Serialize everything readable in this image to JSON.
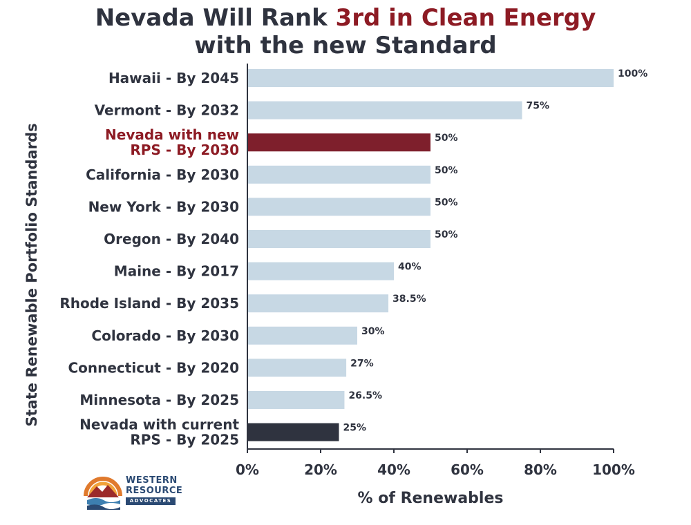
{
  "title": {
    "line1_prefix": "Nevada Will Rank ",
    "line1_accent": "3rd in Clean Energy",
    "line2": "with the new Standard"
  },
  "logo": {
    "line1": "WESTERN",
    "line2": "RESOURCE",
    "line3": "ADVOCATES"
  },
  "chart_data": {
    "type": "bar",
    "orientation": "horizontal",
    "xlabel": "% of Renewables",
    "ylabel": "State Renewable Portfolio Standards",
    "xlim": [
      0,
      100
    ],
    "x_ticks": [
      "0%",
      "20%",
      "40%",
      "60%",
      "80%",
      "100%"
    ],
    "bars": [
      {
        "label": [
          "Hawaii - By 2045"
        ],
        "value": 100,
        "value_label": "100%",
        "color": "#c7d8e4",
        "label_color": "#2f333f"
      },
      {
        "label": [
          "Vermont - By 2032"
        ],
        "value": 75,
        "value_label": "75%",
        "color": "#c7d8e4",
        "label_color": "#2f333f"
      },
      {
        "label": [
          "Nevada with new",
          "RPS - By 2030"
        ],
        "value": 50,
        "value_label": "50%",
        "color": "#7e1f2c",
        "label_color": "#8d1b24"
      },
      {
        "label": [
          "California - By 2030"
        ],
        "value": 50,
        "value_label": "50%",
        "color": "#c7d8e4",
        "label_color": "#2f333f"
      },
      {
        "label": [
          "New York - By 2030"
        ],
        "value": 50,
        "value_label": "50%",
        "color": "#c7d8e4",
        "label_color": "#2f333f"
      },
      {
        "label": [
          "Oregon - By 2040"
        ],
        "value": 50,
        "value_label": "50%",
        "color": "#c7d8e4",
        "label_color": "#2f333f"
      },
      {
        "label": [
          "Maine - By 2017"
        ],
        "value": 40,
        "value_label": "40%",
        "color": "#c7d8e4",
        "label_color": "#2f333f"
      },
      {
        "label": [
          "Rhode Island - By 2035"
        ],
        "value": 38.5,
        "value_label": "38.5%",
        "color": "#c7d8e4",
        "label_color": "#2f333f"
      },
      {
        "label": [
          "Colorado - By 2030"
        ],
        "value": 30,
        "value_label": "30%",
        "color": "#c7d8e4",
        "label_color": "#2f333f"
      },
      {
        "label": [
          "Connecticut - By 2020"
        ],
        "value": 27,
        "value_label": "27%",
        "color": "#c7d8e4",
        "label_color": "#2f333f"
      },
      {
        "label": [
          "Minnesota - By 2025"
        ],
        "value": 26.5,
        "value_label": "26.5%",
        "color": "#c7d8e4",
        "label_color": "#2f333f"
      },
      {
        "label": [
          "Nevada with current",
          "RPS - By 2025"
        ],
        "value": 25,
        "value_label": "25%",
        "color": "#2f333f",
        "label_color": "#2f333f"
      }
    ],
    "grid": false
  }
}
